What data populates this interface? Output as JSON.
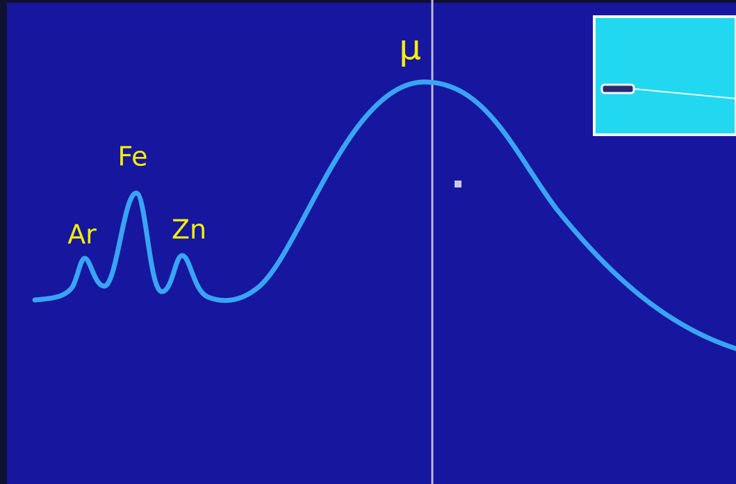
{
  "peak_labels": [
    "Ar",
    "Fe",
    "Zn"
  ],
  "cursor_label": "μ"
}
